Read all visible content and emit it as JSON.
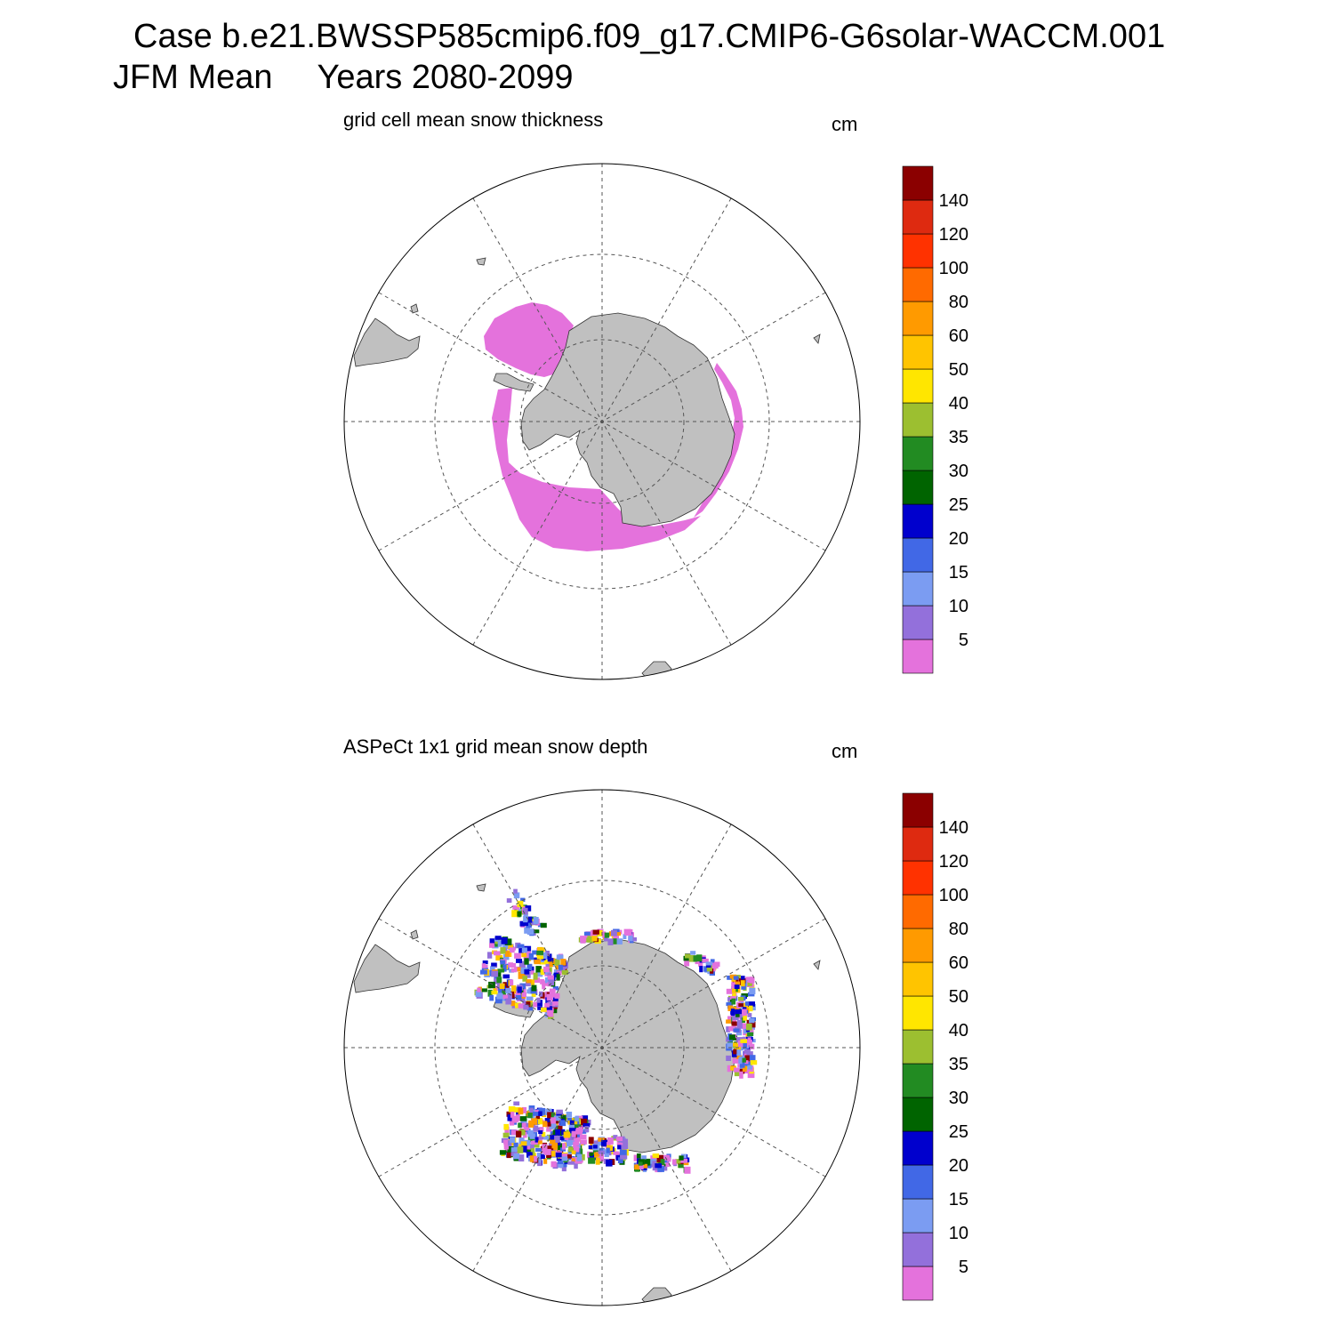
{
  "figure": {
    "case_line": "Case b.e21.BWSSP585cmip6.f09_g17.CMIP6-G6solar-WACCM.001",
    "season": "JFM Mean",
    "years": "Years 2080-2099"
  },
  "panels": [
    {
      "id": "model",
      "subtitle": "grid cell mean snow thickness",
      "units": "cm"
    },
    {
      "id": "obs",
      "subtitle": "ASPeCt 1x1 grid mean snow depth",
      "units": "cm"
    }
  ],
  "colorbar": {
    "levels": [
      "5",
      "10",
      "15",
      "20",
      "25",
      "30",
      "35",
      "40",
      "50",
      "60",
      "80",
      "100",
      "120",
      "140"
    ],
    "colors": [
      "#e472dc",
      "#9370db",
      "#7b9cf2",
      "#4168e6",
      "#0000cd",
      "#006400",
      "#228b22",
      "#9cbf30",
      "#ffe600",
      "#ffc400",
      "#ff9a00",
      "#ff6a00",
      "#ff3200",
      "#de2a10",
      "#8b0000"
    ]
  },
  "map_style": {
    "land": "#c0c0c0",
    "ocean": "#ffffff",
    "grid": "#555555"
  }
}
